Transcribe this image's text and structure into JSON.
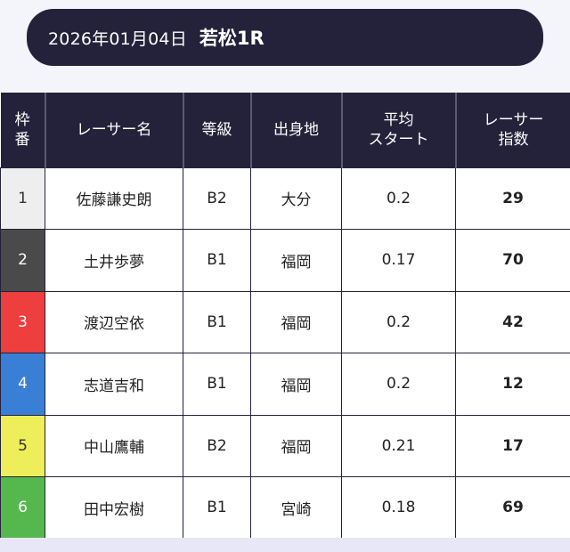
{
  "header": {
    "date": "2026年01月04日",
    "race": "若松1R"
  },
  "table": {
    "columns": [
      "枠\n番",
      "レーサー名",
      "等級",
      "出身地",
      "平均\nスタート",
      "レーサー\n指数"
    ],
    "rows": [
      {
        "frame": "1",
        "frame_color": "#eeeeee",
        "frame_text_color": "#333333",
        "name": "佐藤謙史朗",
        "grade": "B2",
        "origin": "大分",
        "avg_start": "0.2",
        "score": "29"
      },
      {
        "frame": "2",
        "frame_color": "#4a4a4a",
        "frame_text_color": "#ffffff",
        "name": "土井歩夢",
        "grade": "B1",
        "origin": "福岡",
        "avg_start": "0.17",
        "score": "70"
      },
      {
        "frame": "3",
        "frame_color": "#ef3e3e",
        "frame_text_color": "#ffffff",
        "name": "渡辺空依",
        "grade": "B1",
        "origin": "福岡",
        "avg_start": "0.2",
        "score": "42"
      },
      {
        "frame": "4",
        "frame_color": "#3a7fd6",
        "frame_text_color": "#ffffff",
        "name": "志道吉和",
        "grade": "B1",
        "origin": "福岡",
        "avg_start": "0.2",
        "score": "12"
      },
      {
        "frame": "5",
        "frame_color": "#eeee5a",
        "frame_text_color": "#333333",
        "name": "中山鷹輔",
        "grade": "B2",
        "origin": "福岡",
        "avg_start": "0.21",
        "score": "17"
      },
      {
        "frame": "6",
        "frame_color": "#55b84e",
        "frame_text_color": "#ffffff",
        "name": "田中宏樹",
        "grade": "B1",
        "origin": "宮崎",
        "avg_start": "0.18",
        "score": "69"
      }
    ]
  }
}
